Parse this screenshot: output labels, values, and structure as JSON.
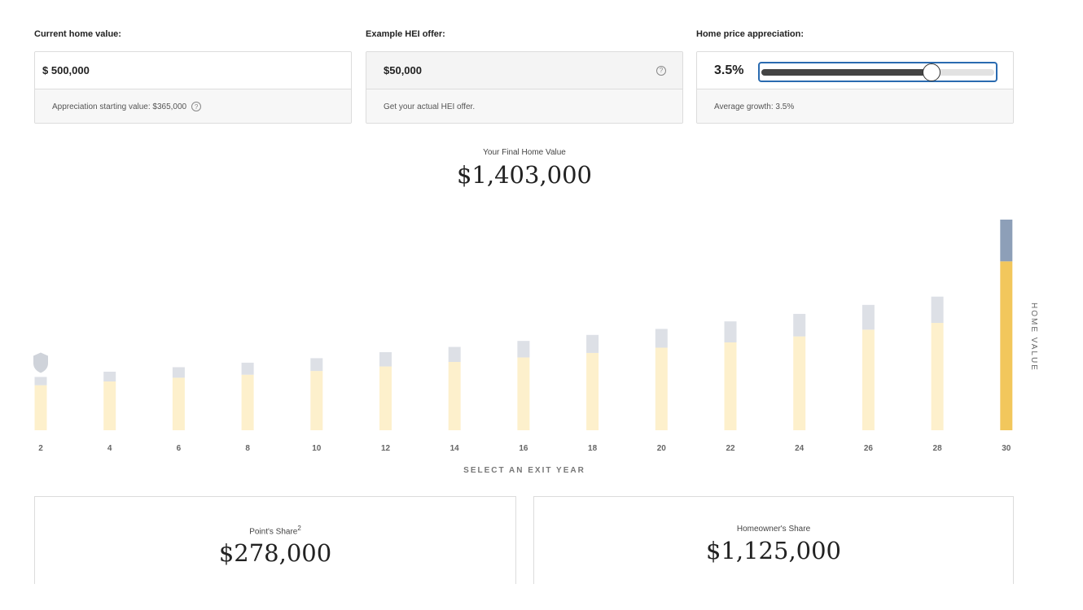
{
  "inputs": {
    "home_value": {
      "label": "Current home value:",
      "currency_symbol": "$",
      "value": "500,000",
      "note_label": "Appreciation starting value:",
      "note_value": "$365,000"
    },
    "hei_offer": {
      "label": "Example HEI offer:",
      "value": "$50,000",
      "note": "Get your actual HEI offer."
    },
    "appreciation": {
      "label": "Home price appreciation:",
      "value": "3.5%",
      "slider_fraction": 0.73,
      "note": "Average growth: 3.5%"
    }
  },
  "icons": {
    "help": "?",
    "shield": "shield-icon"
  },
  "final_value": {
    "label": "Your Final Home Value",
    "value": "$1,403,000"
  },
  "chart_data": {
    "type": "bar",
    "x": [
      2,
      4,
      6,
      8,
      10,
      12,
      14,
      16,
      18,
      20,
      22,
      24,
      26,
      28,
      30
    ],
    "series": [
      {
        "values": [
          300,
          325,
          350,
          370,
          395,
          425,
          455,
          485,
          515,
          550,
          585,
          625,
          670,
          715,
          1125
        ]
      },
      {
        "values": [
          55,
          65,
          70,
          80,
          85,
          95,
          100,
          110,
          120,
          125,
          140,
          150,
          165,
          175,
          278
        ]
      }
    ],
    "selected_x": 30,
    "xlabel": "SELECT AN EXIT YEAR",
    "ylabel": "HOME VALUE",
    "colors": {
      "base": "#fdf0cc",
      "top": "#dde0e6",
      "selected_base": "#f2c75c",
      "selected_top": "#8d9fb8",
      "tick": "#666666"
    }
  },
  "shares": {
    "point": {
      "label": "Point's Share",
      "superscript": "2",
      "value": "$278,000"
    },
    "homeowner": {
      "label": "Homeowner's Share",
      "value": "$1,125,000"
    }
  }
}
